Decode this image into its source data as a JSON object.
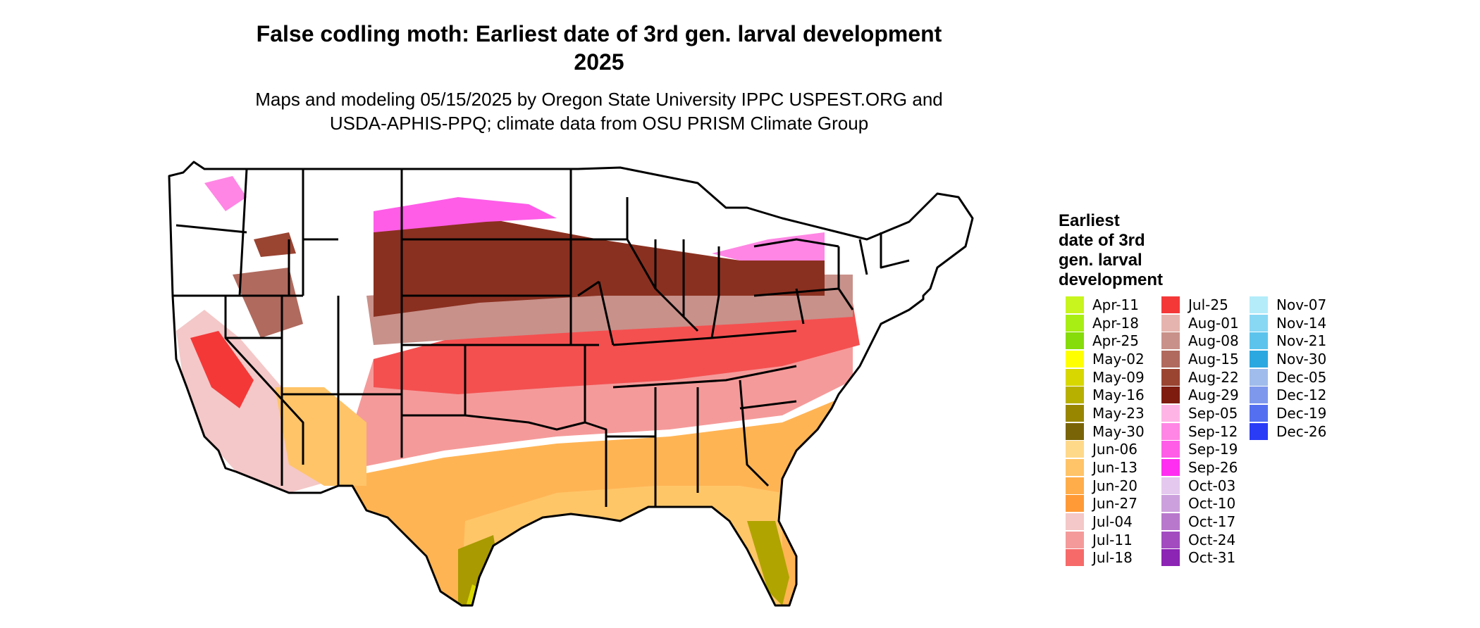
{
  "title": {
    "line1": "False codling moth: Earliest date of 3rd gen. larval development",
    "line2": "2025"
  },
  "subtitle": {
    "line1": "Maps and modeling 05/15/2025 by Oregon State University IPPC USPEST.ORG and",
    "line2": "USDA-APHIS-PPQ; climate data from OSU PRISM Climate Group"
  },
  "legend": {
    "title_lines": [
      "Earliest",
      "date of 3rd",
      "gen. larval",
      "development"
    ],
    "items": [
      {
        "label": "Apr-11",
        "color": "#c8f51e"
      },
      {
        "label": "Apr-18",
        "color": "#a8ee14"
      },
      {
        "label": "Apr-25",
        "color": "#86dc0a"
      },
      {
        "label": "May-02",
        "color": "#ffff00"
      },
      {
        "label": "May-09",
        "color": "#d8d800"
      },
      {
        "label": "May-16",
        "color": "#b8b000"
      },
      {
        "label": "May-23",
        "color": "#988600"
      },
      {
        "label": "May-30",
        "color": "#7a6408"
      },
      {
        "label": "Jun-06",
        "color": "#ffd98a"
      },
      {
        "label": "Jun-13",
        "color": "#ffc468"
      },
      {
        "label": "Jun-20",
        "color": "#ffad4a"
      },
      {
        "label": "Jun-27",
        "color": "#ff9a36"
      },
      {
        "label": "Jul-04",
        "color": "#f4c8c8"
      },
      {
        "label": "Jul-11",
        "color": "#f59a9a"
      },
      {
        "label": "Jul-18",
        "color": "#f66a6a"
      },
      {
        "label": "Jul-25",
        "color": "#f43838"
      },
      {
        "label": "Aug-01",
        "color": "#e6b4ae"
      },
      {
        "label": "Aug-08",
        "color": "#c8918a"
      },
      {
        "label": "Aug-15",
        "color": "#b06a5e"
      },
      {
        "label": "Aug-22",
        "color": "#9a4432"
      },
      {
        "label": "Aug-29",
        "color": "#7e1c10"
      },
      {
        "label": "Sep-05",
        "color": "#ffb4e6"
      },
      {
        "label": "Sep-12",
        "color": "#ff86e4"
      },
      {
        "label": "Sep-19",
        "color": "#ff5ce8"
      },
      {
        "label": "Sep-26",
        "color": "#ff2ef0"
      },
      {
        "label": "Oct-03",
        "color": "#e4c8ee"
      },
      {
        "label": "Oct-10",
        "color": "#cca0dc"
      },
      {
        "label": "Oct-17",
        "color": "#b878cc"
      },
      {
        "label": "Oct-24",
        "color": "#a24cc0"
      },
      {
        "label": "Oct-31",
        "color": "#8c24b4"
      },
      {
        "label": "Nov-07",
        "color": "#b4ecfa"
      },
      {
        "label": "Nov-14",
        "color": "#88d8f4"
      },
      {
        "label": "Nov-21",
        "color": "#5cc4ec"
      },
      {
        "label": "Nov-30",
        "color": "#2ca8e0"
      },
      {
        "label": "Dec-05",
        "color": "#a0bcec"
      },
      {
        "label": "Dec-12",
        "color": "#7e98ec"
      },
      {
        "label": "Dec-19",
        "color": "#5470f0"
      },
      {
        "label": "Dec-26",
        "color": "#2a3cf6"
      }
    ]
  }
}
